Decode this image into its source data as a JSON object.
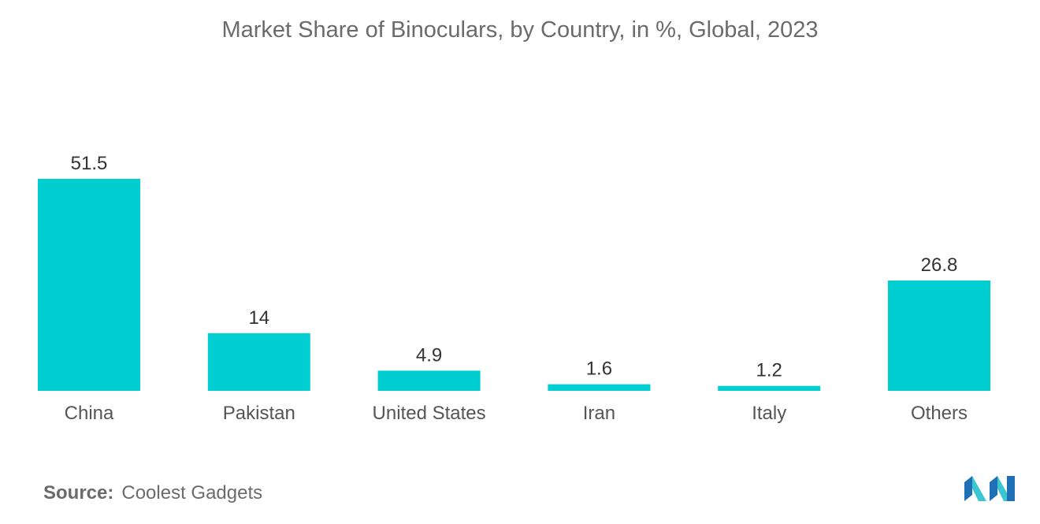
{
  "chart_data": {
    "type": "bar",
    "title": "Market Share of Binoculars, by Country, in %, Global, 2023",
    "categories": [
      "China",
      "Pakistan",
      "United States",
      "Iran",
      "Italy",
      "Others"
    ],
    "values": [
      51.5,
      14,
      4.9,
      1.6,
      1.2,
      26.8
    ],
    "value_labels": [
      "51.5",
      "14",
      "4.9",
      "1.6",
      "1.2",
      "26.8"
    ],
    "xlabel": "",
    "ylabel": "",
    "ylim": [
      0,
      51.5
    ],
    "grid": false,
    "legend": "none",
    "bar_color": "#00ced1"
  },
  "source": {
    "label": "Source:",
    "text": "Coolest Gadgets"
  },
  "logo": {
    "icon": "mordor-intelligence-logo-icon",
    "colors": [
      "#1f6fb5",
      "#3cc6d1"
    ]
  }
}
